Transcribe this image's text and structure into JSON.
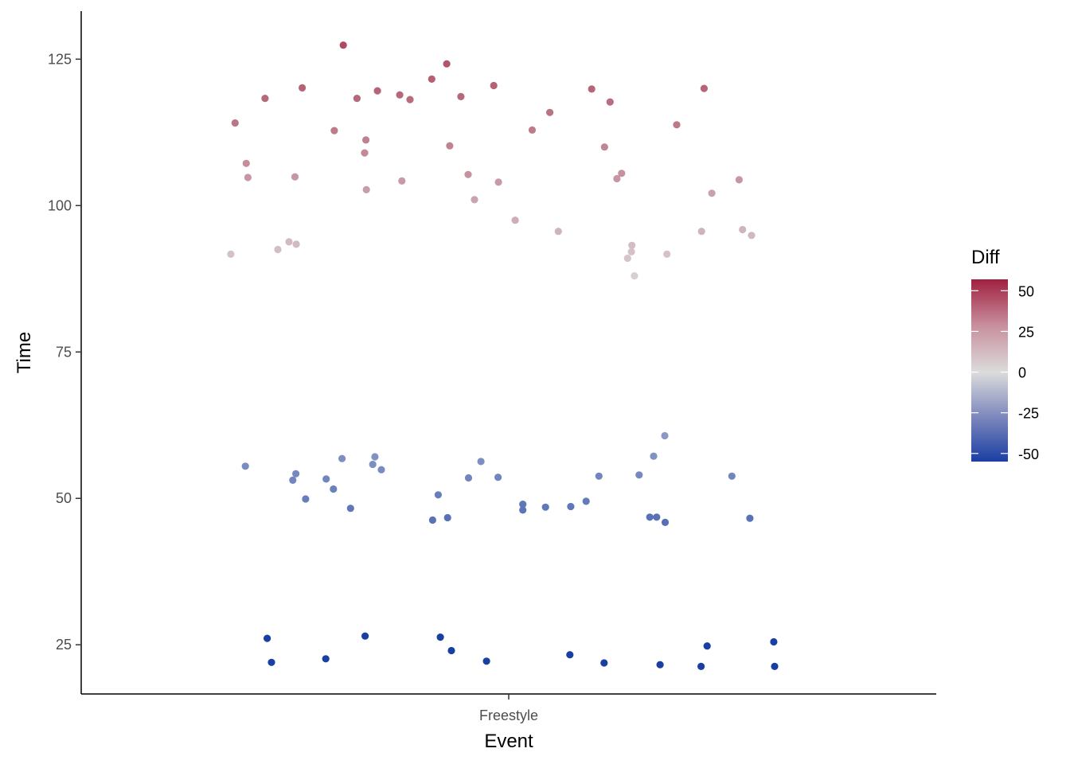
{
  "chart_data": {
    "type": "scatter",
    "title": "",
    "xlabel": "Event",
    "ylabel": "Time",
    "categories": [
      "Freestyle"
    ],
    "ylim": [
      16.6,
      133.2
    ],
    "y_ticks": [
      "25",
      "50",
      "75",
      "100",
      "125"
    ],
    "grid": false,
    "legend": {
      "title": "Diff",
      "type": "colorbar",
      "placement": "right",
      "range": [
        -55,
        57
      ],
      "ticks": [
        "50",
        "25",
        "0",
        "-25",
        "-50"
      ],
      "colors": {
        "low": "#1a3fa3",
        "mid": "#dcdcdc",
        "high": "#a0203f"
      }
    },
    "points": [
      {
        "x": -0.65,
        "y": 91.7,
        "diff": 8
      },
      {
        "x": -0.64,
        "y": 114.1,
        "diff": 31
      },
      {
        "x": -0.614,
        "y": 107.2,
        "diff": 24
      },
      {
        "x": -0.61,
        "y": 104.8,
        "diff": 21
      },
      {
        "x": -0.616,
        "y": 55.5,
        "diff": -28
      },
      {
        "x": -0.57,
        "y": 118.3,
        "diff": 35
      },
      {
        "x": -0.565,
        "y": 26.1,
        "diff": -57
      },
      {
        "x": -0.555,
        "y": 22.0,
        "diff": -61
      },
      {
        "x": -0.54,
        "y": 92.5,
        "diff": 9
      },
      {
        "x": -0.514,
        "y": 93.8,
        "diff": 10
      },
      {
        "x": -0.505,
        "y": 53.1,
        "diff": -30
      },
      {
        "x": -0.498,
        "y": 54.2,
        "diff": -29
      },
      {
        "x": -0.5,
        "y": 104.9,
        "diff": 21
      },
      {
        "x": -0.497,
        "y": 93.4,
        "diff": 10
      },
      {
        "x": -0.483,
        "y": 120.1,
        "diff": 37
      },
      {
        "x": -0.475,
        "y": 49.9,
        "diff": -33
      },
      {
        "x": -0.427,
        "y": 53.3,
        "diff": -30
      },
      {
        "x": -0.428,
        "y": 22.6,
        "diff": -61
      },
      {
        "x": -0.408,
        "y": 112.8,
        "diff": 29
      },
      {
        "x": -0.41,
        "y": 51.6,
        "diff": -32
      },
      {
        "x": -0.39,
        "y": 56.8,
        "diff": -27
      },
      {
        "x": -0.387,
        "y": 127.4,
        "diff": 44
      },
      {
        "x": -0.37,
        "y": 48.3,
        "diff": -35
      },
      {
        "x": -0.355,
        "y": 118.3,
        "diff": 35
      },
      {
        "x": -0.337,
        "y": 109.0,
        "diff": 25
      },
      {
        "x": -0.334,
        "y": 111.2,
        "diff": 28
      },
      {
        "x": -0.333,
        "y": 102.7,
        "diff": 19
      },
      {
        "x": -0.336,
        "y": 26.5,
        "diff": -57
      },
      {
        "x": -0.318,
        "y": 55.8,
        "diff": -27
      },
      {
        "x": -0.313,
        "y": 57.1,
        "diff": -26
      },
      {
        "x": -0.307,
        "y": 119.6,
        "diff": 36
      },
      {
        "x": -0.298,
        "y": 54.9,
        "diff": -28
      },
      {
        "x": -0.255,
        "y": 118.9,
        "diff": 35
      },
      {
        "x": -0.25,
        "y": 104.2,
        "diff": 20
      },
      {
        "x": -0.231,
        "y": 118.1,
        "diff": 34
      },
      {
        "x": -0.18,
        "y": 121.6,
        "diff": 38
      },
      {
        "x": -0.178,
        "y": 46.3,
        "diff": -37
      },
      {
        "x": -0.165,
        "y": 50.6,
        "diff": -33
      },
      {
        "x": -0.16,
        "y": 26.3,
        "diff": -57
      },
      {
        "x": -0.145,
        "y": 124.2,
        "diff": 41
      },
      {
        "x": -0.143,
        "y": 46.7,
        "diff": -37
      },
      {
        "x": -0.138,
        "y": 110.2,
        "diff": 27
      },
      {
        "x": -0.134,
        "y": 24.0,
        "diff": -59
      },
      {
        "x": -0.112,
        "y": 118.6,
        "diff": 35
      },
      {
        "x": -0.095,
        "y": 105.3,
        "diff": 22
      },
      {
        "x": -0.094,
        "y": 53.5,
        "diff": -30
      },
      {
        "x": -0.08,
        "y": 101.0,
        "diff": 17
      },
      {
        "x": -0.065,
        "y": 56.3,
        "diff": -27
      },
      {
        "x": -0.052,
        "y": 22.2,
        "diff": -61
      },
      {
        "x": -0.035,
        "y": 120.5,
        "diff": 37
      },
      {
        "x": -0.025,
        "y": 53.6,
        "diff": -30
      },
      {
        "x": -0.024,
        "y": 104.0,
        "diff": 20
      },
      {
        "x": 0.015,
        "y": 97.5,
        "diff": 14
      },
      {
        "x": 0.033,
        "y": 49.0,
        "diff": -35
      },
      {
        "x": 0.033,
        "y": 48.0,
        "diff": -36
      },
      {
        "x": 0.055,
        "y": 112.9,
        "diff": 29
      },
      {
        "x": 0.086,
        "y": 48.5,
        "diff": -35
      },
      {
        "x": 0.096,
        "y": 115.9,
        "diff": 32
      },
      {
        "x": 0.116,
        "y": 95.6,
        "diff": 12
      },
      {
        "x": 0.145,
        "y": 48.6,
        "diff": -35
      },
      {
        "x": 0.143,
        "y": 23.3,
        "diff": -60
      },
      {
        "x": 0.181,
        "y": 49.5,
        "diff": -34
      },
      {
        "x": 0.194,
        "y": 119.9,
        "diff": 36
      },
      {
        "x": 0.211,
        "y": 53.8,
        "diff": -30
      },
      {
        "x": 0.223,
        "y": 21.9,
        "diff": -62
      },
      {
        "x": 0.224,
        "y": 110.0,
        "diff": 26
      },
      {
        "x": 0.237,
        "y": 117.7,
        "diff": 34
      },
      {
        "x": 0.253,
        "y": 104.6,
        "diff": 21
      },
      {
        "x": 0.264,
        "y": 105.5,
        "diff": 22
      },
      {
        "x": 0.278,
        "y": 91.0,
        "diff": 7
      },
      {
        "x": 0.287,
        "y": 92.1,
        "diff": 8
      },
      {
        "x": 0.288,
        "y": 93.2,
        "diff": 9
      },
      {
        "x": 0.294,
        "y": 88.0,
        "diff": 4
      },
      {
        "x": 0.305,
        "y": 54.0,
        "diff": -29
      },
      {
        "x": 0.33,
        "y": 46.8,
        "diff": -37
      },
      {
        "x": 0.339,
        "y": 57.2,
        "diff": -26
      },
      {
        "x": 0.346,
        "y": 46.8,
        "diff": -37
      },
      {
        "x": 0.354,
        "y": 21.6,
        "diff": -62
      },
      {
        "x": 0.365,
        "y": 60.7,
        "diff": -23
      },
      {
        "x": 0.366,
        "y": 45.9,
        "diff": -38
      },
      {
        "x": 0.37,
        "y": 91.7,
        "diff": 8
      },
      {
        "x": 0.393,
        "y": 113.8,
        "diff": 30
      },
      {
        "x": 0.45,
        "y": 21.3,
        "diff": -62
      },
      {
        "x": 0.451,
        "y": 95.6,
        "diff": 12
      },
      {
        "x": 0.457,
        "y": 120.0,
        "diff": 36
      },
      {
        "x": 0.464,
        "y": 24.8,
        "diff": -59
      },
      {
        "x": 0.475,
        "y": 102.1,
        "diff": 18
      },
      {
        "x": 0.522,
        "y": 53.8,
        "diff": -30
      },
      {
        "x": 0.539,
        "y": 104.4,
        "diff": 21
      },
      {
        "x": 0.547,
        "y": 95.9,
        "diff": 12
      },
      {
        "x": 0.564,
        "y": 46.6,
        "diff": -37
      },
      {
        "x": 0.568,
        "y": 94.9,
        "diff": 11
      },
      {
        "x": 0.62,
        "y": 25.5,
        "diff": -58
      },
      {
        "x": 0.622,
        "y": 21.3,
        "diff": -62
      }
    ]
  }
}
